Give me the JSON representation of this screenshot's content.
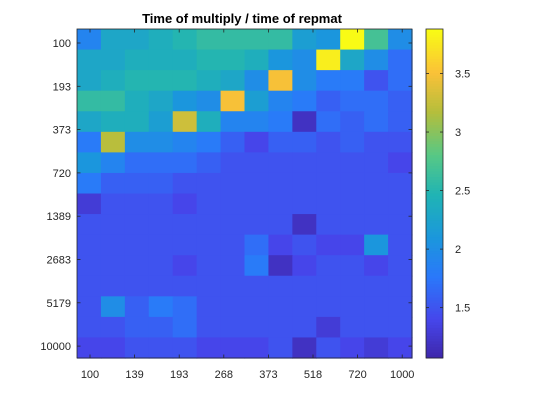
{
  "chart_data": {
    "type": "heatmap",
    "title": "Time of multiply / time of repmat",
    "x_tick_labels": [
      "100",
      "139",
      "193",
      "268",
      "373",
      "518",
      "720",
      "1000"
    ],
    "y_tick_labels": [
      "100",
      "193",
      "373",
      "720",
      "1389",
      "2683",
      "5179",
      "10000"
    ],
    "colorbar": {
      "range": [
        1.07,
        3.88
      ],
      "ticks": [
        1.5,
        2,
        2.5,
        3,
        3.5
      ],
      "tick_labels": [
        "1.5",
        "2",
        "2.5",
        "3",
        "3.5"
      ],
      "colormap": "parula"
    },
    "grid": false,
    "values": [
      [
        1.9,
        2.3,
        2.3,
        2.4,
        2.5,
        2.6,
        2.6,
        2.6,
        2.6,
        2.2,
        2.1,
        3.9,
        2.7,
        2.0
      ],
      [
        2.3,
        2.3,
        2.4,
        2.4,
        2.4,
        2.5,
        2.5,
        2.4,
        2.1,
        2.0,
        3.8,
        2.3,
        2.0,
        1.7
      ],
      [
        2.3,
        2.4,
        2.5,
        2.5,
        2.5,
        2.4,
        2.3,
        2.0,
        3.5,
        2.0,
        1.8,
        1.8,
        1.5,
        1.7
      ],
      [
        2.6,
        2.6,
        2.4,
        2.3,
        2.1,
        2.0,
        3.5,
        2.2,
        1.9,
        1.8,
        1.6,
        1.7,
        1.7,
        1.6
      ],
      [
        2.3,
        2.4,
        2.4,
        2.2,
        3.3,
        2.4,
        1.9,
        1.9,
        1.8,
        1.2,
        1.7,
        1.6,
        1.7,
        1.6
      ],
      [
        1.8,
        3.2,
        2.0,
        2.0,
        1.9,
        1.8,
        1.6,
        1.4,
        1.6,
        1.6,
        1.5,
        1.6,
        1.5,
        1.5
      ],
      [
        2.1,
        1.9,
        1.7,
        1.7,
        1.7,
        1.6,
        1.5,
        1.5,
        1.5,
        1.5,
        1.5,
        1.5,
        1.5,
        1.4
      ],
      [
        1.8,
        1.6,
        1.6,
        1.6,
        1.5,
        1.5,
        1.5,
        1.5,
        1.5,
        1.5,
        1.5,
        1.5,
        1.5,
        1.5
      ],
      [
        1.3,
        1.5,
        1.5,
        1.5,
        1.4,
        1.5,
        1.5,
        1.5,
        1.5,
        1.5,
        1.5,
        1.5,
        1.5,
        1.5
      ],
      [
        1.5,
        1.5,
        1.5,
        1.5,
        1.5,
        1.5,
        1.5,
        1.5,
        1.5,
        1.2,
        1.5,
        1.5,
        1.5,
        1.5
      ],
      [
        1.5,
        1.5,
        1.5,
        1.5,
        1.5,
        1.5,
        1.5,
        1.7,
        1.4,
        1.5,
        1.4,
        1.4,
        2.1,
        1.5
      ],
      [
        1.5,
        1.5,
        1.5,
        1.5,
        1.4,
        1.5,
        1.5,
        1.8,
        1.2,
        1.4,
        1.5,
        1.5,
        1.4,
        1.5
      ],
      [
        1.5,
        1.5,
        1.5,
        1.5,
        1.5,
        1.5,
        1.5,
        1.5,
        1.5,
        1.5,
        1.5,
        1.5,
        1.5,
        1.5
      ],
      [
        1.5,
        2.0,
        1.6,
        1.8,
        1.7,
        1.5,
        1.5,
        1.5,
        1.5,
        1.5,
        1.5,
        1.5,
        1.5,
        1.5
      ],
      [
        1.5,
        1.5,
        1.6,
        1.6,
        1.7,
        1.5,
        1.5,
        1.5,
        1.5,
        1.5,
        1.3,
        1.5,
        1.5,
        1.5
      ],
      [
        1.4,
        1.4,
        1.5,
        1.5,
        1.5,
        1.4,
        1.4,
        1.4,
        1.5,
        1.2,
        1.5,
        1.4,
        1.3,
        1.4
      ]
    ]
  }
}
